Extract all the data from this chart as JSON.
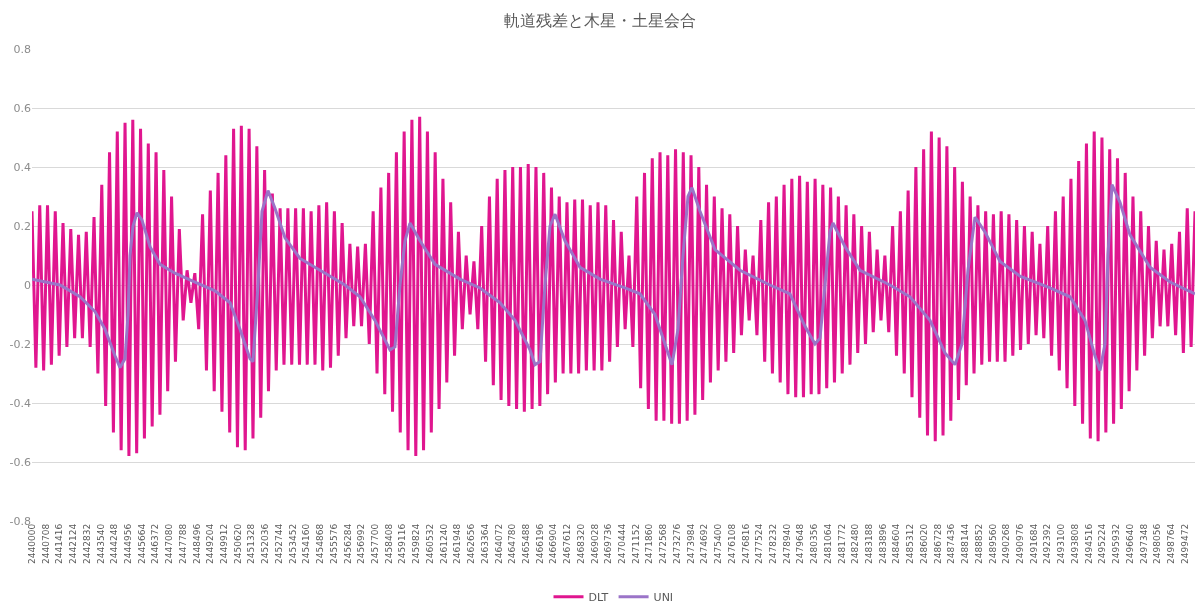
{
  "chart_data": {
    "type": "line",
    "title": "軌道残差と木星・土星会合",
    "xlim": [
      2440000,
      2500000
    ],
    "xticks": [
      2440000,
      2440708,
      2441416,
      2442124,
      2442832,
      2443540,
      2444248,
      2444956,
      2445664,
      2446372,
      2447080,
      2447788,
      2448496,
      2449204,
      2449912,
      2450620,
      2451328,
      2452036,
      2452744,
      2453452,
      2454160,
      2454868,
      2455576,
      2456284,
      2456992,
      2457700,
      2458408,
      2459116,
      2459824,
      2460532,
      2461240,
      2461948,
      2462656,
      2463364,
      2464072,
      2464780,
      2465488,
      2466196,
      2466904,
      2467612,
      2468320,
      2469028,
      2469736,
      2470444,
      2471152,
      2471860,
      2472568,
      2473276,
      2473984,
      2474692,
      2475400,
      2476108,
      2476816,
      2477524,
      2478232,
      2478940,
      2479648,
      2480356,
      2481064,
      2481772,
      2482480,
      2483188,
      2483896,
      2484604,
      2485312,
      2486020,
      2486728,
      2487436,
      2488144,
      2488852,
      2489560,
      2490268,
      2490976,
      2491684,
      2492392,
      2493100,
      2493808,
      2494516,
      2495224,
      2495932,
      2496640,
      2497348,
      2498056,
      2498764,
      2499472
    ],
    "ylim": [
      -0.8,
      0.8
    ],
    "yticks": [
      -0.8,
      -0.6,
      -0.4,
      -0.2,
      0,
      0.2,
      0.4,
      0.6,
      0.8
    ],
    "grid": "y",
    "legend": "bottom",
    "marker": "none",
    "line_style": "solid",
    "series": [
      {
        "name": "DLT",
        "color": "#e0168f",
        "x": [
          2440000,
          2440200,
          2440400,
          2440600,
          2440800,
          2441000,
          2441200,
          2441400,
          2441600,
          2441800,
          2442000,
          2442200,
          2442400,
          2442600,
          2442800,
          2443000,
          2443200,
          2443400,
          2443600,
          2443800,
          2444000,
          2444200,
          2444400,
          2444600,
          2444800,
          2445000,
          2445200,
          2445400,
          2445600,
          2445800,
          2446000,
          2446200,
          2446400,
          2446600,
          2446800,
          2447000,
          2447200,
          2447400,
          2447600,
          2447800,
          2448000,
          2448200,
          2448400,
          2448600,
          2448800,
          2449000,
          2449200,
          2449400,
          2449600,
          2449800,
          2450000,
          2450200,
          2450400,
          2450600,
          2450800,
          2451000,
          2451200,
          2451400,
          2451600,
          2451800,
          2452000,
          2452200,
          2452400,
          2452600,
          2452800,
          2453000,
          2453200,
          2453400,
          2453600,
          2453800,
          2454000,
          2454200,
          2454400,
          2454600,
          2454800,
          2455000,
          2455200,
          2455400,
          2455600,
          2455800,
          2456000,
          2456200,
          2456400,
          2456600,
          2456800,
          2457000,
          2457200,
          2457400,
          2457600,
          2457800,
          2458000,
          2458200,
          2458400,
          2458600,
          2458800,
          2459000,
          2459200,
          2459400,
          2459600,
          2459800,
          2460000,
          2460200,
          2460400,
          2460600,
          2460800,
          2461000,
          2461200,
          2461400,
          2461600,
          2461800,
          2462000,
          2462200,
          2462400,
          2462600,
          2462800,
          2463000,
          2463200,
          2463400,
          2463600,
          2463800,
          2464000,
          2464200,
          2464400,
          2464600,
          2464800,
          2465000,
          2465200,
          2465400,
          2465600,
          2465800,
          2466000,
          2466200,
          2466400,
          2466600,
          2466800,
          2467000,
          2467200,
          2467400,
          2467600,
          2467800,
          2468000,
          2468200,
          2468400,
          2468600,
          2468800,
          2469000,
          2469200,
          2469400,
          2469600,
          2469800,
          2470000,
          2470200,
          2470400,
          2470600,
          2470800,
          2471000,
          2471200,
          2471400,
          2471600,
          2471800,
          2472000,
          2472200,
          2472400,
          2472600,
          2472800,
          2473000,
          2473200,
          2473400,
          2473600,
          2473800,
          2474000,
          2474200,
          2474400,
          2474600,
          2474800,
          2475000,
          2475200,
          2475400,
          2475600,
          2475800,
          2476000,
          2476200,
          2476400,
          2476600,
          2476800,
          2477000,
          2477200,
          2477400,
          2477600,
          2477800,
          2478000,
          2478200,
          2478400,
          2478600,
          2478800,
          2479000,
          2479200,
          2479400,
          2479600,
          2479800,
          2480000,
          2480200,
          2480400,
          2480600,
          2480800,
          2481000,
          2481200,
          2481400,
          2481600,
          2481800,
          2482000,
          2482200,
          2482400,
          2482600,
          2482800,
          2483000,
          2483200,
          2483400,
          2483600,
          2483800,
          2484000,
          2484200,
          2484400,
          2484600,
          2484800,
          2485000,
          2485200,
          2485400,
          2485600,
          2485800,
          2486000,
          2486200,
          2486400,
          2486600,
          2486800,
          2487000,
          2487200,
          2487400,
          2487600,
          2487800,
          2488000,
          2488200,
          2488400,
          2488600,
          2488800,
          2489000,
          2489200,
          2489400,
          2489600,
          2489800,
          2490000,
          2490200,
          2490400,
          2490600,
          2490800,
          2491000,
          2491200,
          2491400,
          2491600,
          2491800,
          2492000,
          2492200,
          2492400,
          2492600,
          2492800,
          2493000,
          2493200,
          2493400,
          2493600,
          2493800,
          2494000,
          2494200,
          2494400,
          2494600,
          2494800,
          2495000,
          2495200,
          2495400,
          2495600,
          2495800,
          2496000,
          2496200,
          2496400,
          2496600,
          2496800,
          2497000,
          2497200,
          2497400,
          2497600,
          2497800,
          2498000,
          2498200,
          2498400,
          2498600,
          2498800,
          2499000,
          2499200,
          2499400,
          2499600,
          2499800,
          2500000
        ],
        "values": [
          0.25,
          -0.28,
          0.27,
          -0.29,
          0.27,
          -0.27,
          0.25,
          -0.24,
          0.21,
          -0.21,
          0.19,
          -0.18,
          0.17,
          -0.18,
          0.18,
          -0.21,
          0.23,
          -0.3,
          0.34,
          -0.41,
          0.45,
          -0.5,
          0.52,
          -0.56,
          0.55,
          -0.58,
          0.56,
          -0.57,
          0.53,
          -0.52,
          0.48,
          -0.48,
          0.45,
          -0.44,
          0.39,
          -0.36,
          0.3,
          -0.26,
          0.19,
          -0.12,
          0.05,
          -0.06,
          0.04,
          -0.15,
          0.24,
          -0.29,
          0.32,
          -0.36,
          0.38,
          -0.43,
          0.44,
          -0.5,
          0.53,
          -0.55,
          0.54,
          -0.56,
          0.53,
          -0.52,
          0.47,
          -0.45,
          0.39,
          -0.36,
          0.31,
          -0.29,
          0.26,
          -0.27,
          0.26,
          -0.27,
          0.26,
          -0.27,
          0.26,
          -0.27,
          0.25,
          -0.27,
          0.27,
          -0.29,
          0.28,
          -0.28,
          0.25,
          -0.24,
          0.21,
          -0.18,
          0.14,
          -0.14,
          0.13,
          -0.14,
          0.14,
          -0.2,
          0.25,
          -0.3,
          0.33,
          -0.37,
          0.38,
          -0.43,
          0.45,
          -0.5,
          0.52,
          -0.56,
          0.56,
          -0.58,
          0.57,
          -0.56,
          0.52,
          -0.5,
          0.45,
          -0.42,
          0.36,
          -0.33,
          0.28,
          -0.24,
          0.18,
          -0.15,
          0.1,
          -0.1,
          0.08,
          -0.15,
          0.2,
          -0.26,
          0.3,
          -0.34,
          0.36,
          -0.39,
          0.39,
          -0.41,
          0.4,
          -0.42,
          0.4,
          -0.43,
          0.41,
          -0.42,
          0.4,
          -0.41,
          0.38,
          -0.37,
          0.33,
          -0.33,
          0.3,
          -0.3,
          0.28,
          -0.3,
          0.29,
          -0.3,
          0.29,
          -0.29,
          0.27,
          -0.29,
          0.28,
          -0.29,
          0.27,
          -0.26,
          0.22,
          -0.21,
          0.18,
          -0.15,
          0.1,
          -0.21,
          0.3,
          -0.35,
          0.38,
          -0.42,
          0.43,
          -0.46,
          0.45,
          -0.46,
          0.44,
          -0.47,
          0.46,
          -0.47,
          0.45,
          -0.46,
          0.44,
          -0.44,
          0.4,
          -0.39,
          0.34,
          -0.33,
          0.3,
          -0.29,
          0.26,
          -0.26,
          0.24,
          -0.23,
          0.2,
          -0.17,
          0.12,
          -0.12,
          0.1,
          -0.17,
          0.22,
          -0.26,
          0.28,
          -0.3,
          0.3,
          -0.33,
          0.34,
          -0.37,
          0.36,
          -0.38,
          0.37,
          -0.38,
          0.35,
          -0.37,
          0.36,
          -0.37,
          0.34,
          -0.35,
          0.33,
          -0.33,
          0.3,
          -0.3,
          0.27,
          -0.27,
          0.24,
          -0.23,
          0.2,
          -0.2,
          0.18,
          -0.16,
          0.12,
          -0.12,
          0.1,
          -0.16,
          0.2,
          -0.24,
          0.25,
          -0.3,
          0.32,
          -0.38,
          0.4,
          -0.45,
          0.46,
          -0.51,
          0.52,
          -0.53,
          0.5,
          -0.51,
          0.47,
          -0.46,
          0.4,
          -0.39,
          0.35,
          -0.34,
          0.3,
          -0.3,
          0.27,
          -0.27,
          0.25,
          -0.26,
          0.24,
          -0.26,
          0.25,
          -0.26,
          0.24,
          -0.24,
          0.22,
          -0.22,
          0.2,
          -0.2,
          0.18,
          -0.17,
          0.14,
          -0.18,
          0.2,
          -0.24,
          0.25,
          -0.29,
          0.3,
          -0.35,
          0.36,
          -0.41,
          0.42,
          -0.47,
          0.48,
          -0.52,
          0.52,
          -0.53,
          0.5,
          -0.5,
          0.46,
          -0.47,
          0.43,
          -0.42,
          0.38,
          -0.36,
          0.3,
          -0.29,
          0.25,
          -0.24,
          0.2,
          -0.18,
          0.15,
          -0.14,
          0.12,
          -0.14,
          0.14,
          -0.17,
          0.18,
          -0.23,
          0.26,
          -0.21,
          0.25
        ]
      },
      {
        "name": "UNI",
        "color": "#9b74c8",
        "x": [
          2440000,
          2441444,
          2442476,
          2443250,
          2443766,
          2444282,
          2444540,
          2444798,
          2444953,
          2445056,
          2445211,
          2445417,
          2445675,
          2446088,
          2446604,
          2447377,
          2448409,
          2449441,
          2450215,
          2450731,
          2451247,
          2451401,
          2451659,
          2451866,
          2452175,
          2452536,
          2453052,
          2453826,
          2454858,
          2456148,
          2456922,
          2457695,
          2458469,
          2458727,
          2458985,
          2459243,
          2459501,
          2460017,
          2460791,
          2462081,
          2463112,
          2464144,
          2464918,
          2465692,
          2465950,
          2466208,
          2466466,
          2466724,
          2466982,
          2467497,
          2468271,
          2469303,
          2470593,
          2471367,
          2472141,
          2472656,
          2473018,
          2473327,
          2473585,
          2473843,
          2474049,
          2474462,
          2475236,
          2476526,
          2478073,
          2479105,
          2479879,
          2480395,
          2480653,
          2480911,
          2481169,
          2481324,
          2481943,
          2482716,
          2484264,
          2485296,
          2486328,
          2487102,
          2487618,
          2487979,
          2488288,
          2488649,
          2489165,
          2489939,
          2490971,
          2492519,
          2493551,
          2494324,
          2494840,
          2495098,
          2495356,
          2495511,
          2495717,
          2496130,
          2496646,
          2497678,
          2498709,
          2500000
        ],
        "values": [
          0.02,
          0.0,
          -0.04,
          -0.09,
          -0.15,
          -0.24,
          -0.28,
          -0.25,
          -0.1,
          0.1,
          0.2,
          0.245,
          0.22,
          0.13,
          0.07,
          0.04,
          0.01,
          -0.02,
          -0.06,
          -0.15,
          -0.25,
          -0.26,
          0.0,
          0.25,
          0.32,
          0.26,
          0.16,
          0.09,
          0.05,
          0.0,
          -0.04,
          -0.12,
          -0.22,
          -0.21,
          0.0,
          0.15,
          0.21,
          0.15,
          0.07,
          0.02,
          -0.01,
          -0.06,
          -0.12,
          -0.22,
          -0.27,
          -0.26,
          0.0,
          0.2,
          0.24,
          0.15,
          0.06,
          0.02,
          -0.01,
          -0.03,
          -0.1,
          -0.2,
          -0.27,
          -0.15,
          0.1,
          0.3,
          0.33,
          0.25,
          0.12,
          0.05,
          0.0,
          -0.03,
          -0.14,
          -0.2,
          -0.18,
          0.0,
          0.18,
          0.21,
          0.13,
          0.05,
          0.0,
          -0.04,
          -0.12,
          -0.23,
          -0.27,
          -0.2,
          0.05,
          0.23,
          0.18,
          0.08,
          0.03,
          -0.01,
          -0.04,
          -0.12,
          -0.24,
          -0.29,
          -0.2,
          0.1,
          0.34,
          0.28,
          0.17,
          0.06,
          0.01,
          -0.03
        ]
      }
    ]
  }
}
